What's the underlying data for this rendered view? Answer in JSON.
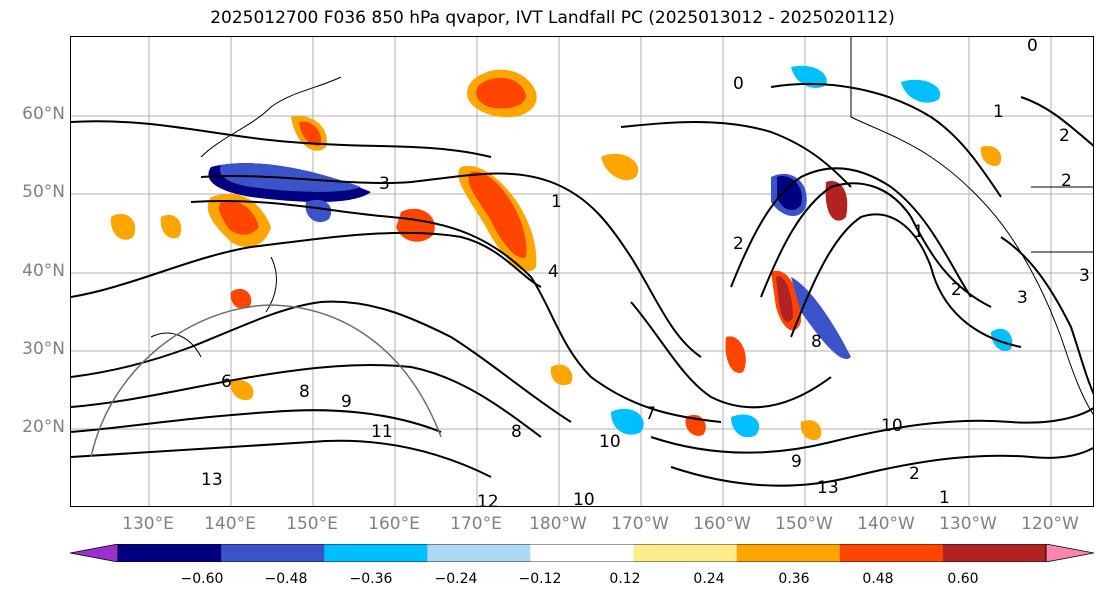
{
  "title": "2025012700 F036 850 hPa qvapor, IVT Landfall PC (2025013012 - 2025020112)",
  "lat_labels": [
    "60°N",
    "50°N",
    "40°N",
    "30°N",
    "20°N"
  ],
  "lon_labels": [
    "130°E",
    "140°E",
    "150°E",
    "160°E",
    "170°E",
    "180°W",
    "170°W",
    "160°W",
    "150°W",
    "140°W",
    "130°W",
    "120°W"
  ],
  "colorbar": {
    "colors": [
      "#9932cc",
      "#000080",
      "#3a53c8",
      "#00bfff",
      "#add8f6",
      "#ffffff",
      "#ffec8b",
      "#ffa500",
      "#ff4500",
      "#b22222",
      "#ff85b0"
    ],
    "tick_labels": [
      "−0.60",
      "−0.48",
      "−0.36",
      "−0.24",
      "−0.12",
      "0.12",
      "0.24",
      "0.36",
      "0.48",
      "0.60"
    ]
  },
  "contour_labels": [
    "0",
    "0",
    "1",
    "2",
    "2",
    "3",
    "1",
    "2",
    "2",
    "1",
    "3",
    "3",
    "4",
    "8",
    "8",
    "8",
    "9",
    "10",
    "10",
    "11",
    "12",
    "13",
    "13",
    "10",
    "9",
    "7",
    "6",
    "2",
    "1"
  ]
}
